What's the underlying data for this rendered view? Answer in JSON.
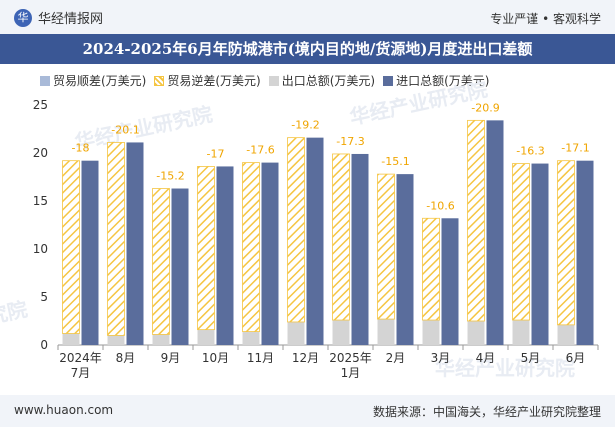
{
  "header": {
    "logo_char": "华",
    "site_name": "华经情报网",
    "tagline": "专业严谨 • 客观科学"
  },
  "title": "2024-2025年6月年防城港市(境内目的地/货源地)月度进出口差额",
  "legend": {
    "surplus": "贸易顺差(万美元)",
    "deficit": "贸易逆差(万美元)",
    "export": "出口总额(万美元)",
    "import": "进口总额(万美元)"
  },
  "footer": {
    "site": "www.huaon.com",
    "source": "数据来源：中国海关，华经产业研究院整理"
  },
  "watermark": "华经产业研究院",
  "colors": {
    "surplus": "#a9bad8",
    "deficit": "#f5c542",
    "export": "#d4d4d4",
    "import": "#5a6d9c",
    "label": "#f0a500",
    "title_bg": "#3a5795"
  },
  "chart_data": {
    "type": "bar",
    "categories": [
      [
        "2024年",
        "7月"
      ],
      [
        "8月"
      ],
      [
        "9月"
      ],
      [
        "10月"
      ],
      [
        "11月"
      ],
      [
        "12月"
      ],
      [
        "2025年",
        "1月"
      ],
      [
        "2月"
      ],
      [
        "3月"
      ],
      [
        "4月"
      ],
      [
        "5月"
      ],
      [
        "6月"
      ]
    ],
    "series": [
      {
        "name": "出口总额(万美元)",
        "values": [
          1.2,
          1.0,
          1.1,
          1.6,
          1.4,
          2.4,
          2.6,
          2.7,
          2.6,
          2.5,
          2.6,
          2.1
        ]
      },
      {
        "name": "进口总额(万美元)",
        "values": [
          19.2,
          21.1,
          16.3,
          18.6,
          19.0,
          21.6,
          19.9,
          17.8,
          13.2,
          23.4,
          18.9,
          19.2
        ]
      },
      {
        "name": "贸易逆差(万美元)",
        "values": [
          -18,
          -20.1,
          -15.2,
          -17,
          -17.6,
          -19.2,
          -17.3,
          -15.1,
          -10.6,
          -20.9,
          -16.3,
          -17.1
        ]
      },
      {
        "name": "贸易顺差(万美元)",
        "values": [
          0,
          0,
          0,
          0,
          0,
          0,
          0,
          0,
          0,
          0,
          0,
          0
        ]
      }
    ],
    "data_labels": [
      "-18",
      "-20.1",
      "-15.2",
      "-17",
      "-17.6",
      "-19.2",
      "-17.3",
      "-15.1",
      "-10.6",
      "-20.9",
      "-16.3",
      "-17.1"
    ],
    "y_ticks": [
      "0",
      "5",
      "10",
      "15",
      "20",
      "25"
    ],
    "ylim": [
      0,
      25
    ],
    "grid": false,
    "legend_position": "top-left"
  }
}
